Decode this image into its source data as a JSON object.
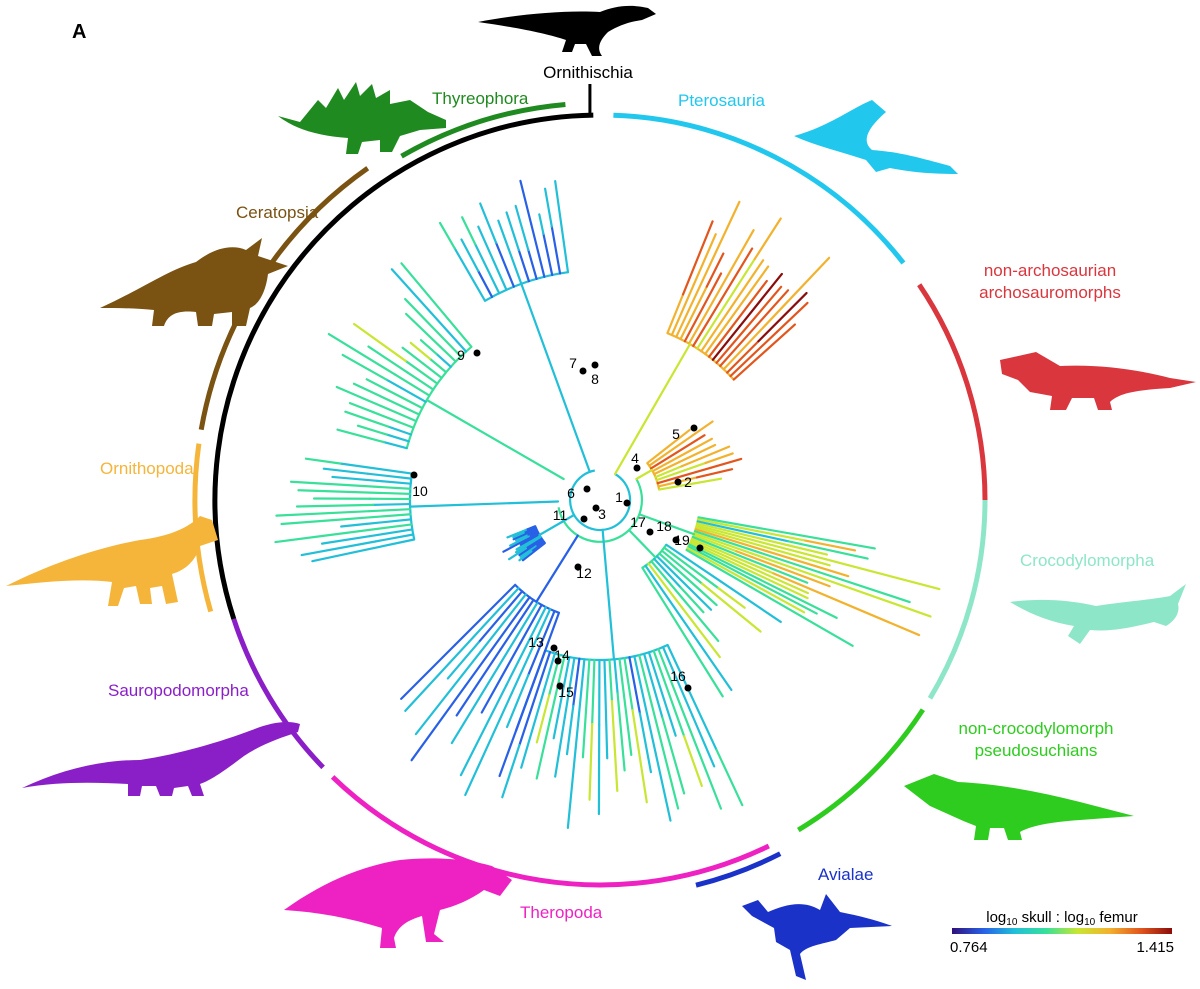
{
  "figure": {
    "panel_label": "A"
  },
  "clades": [
    {
      "key": "ornithischia",
      "name": "Ornithischia",
      "color": "#000000"
    },
    {
      "key": "thyreophora",
      "name": "Thyreophora",
      "color": "#1f8a1f"
    },
    {
      "key": "pterosauria",
      "name": "Pterosauria",
      "color": "#22c7ee"
    },
    {
      "key": "non_archosaurian",
      "name_line1": "non-archosaurian",
      "name_line2": "archosauromorphs",
      "color": "#d9363e"
    },
    {
      "key": "crocodylomorpha",
      "name": "Crocodylomorpha",
      "color": "#8ee6c8"
    },
    {
      "key": "non_croc",
      "name_line1": "non-crocodylomorph",
      "name_line2": "pseudosuchians",
      "color": "#2ecc1f"
    },
    {
      "key": "avialae",
      "name": "Avialae",
      "color": "#1a32c8"
    },
    {
      "key": "theropoda",
      "name": "Theropoda",
      "color": "#ee22c2"
    },
    {
      "key": "sauropodomorpha",
      "name": "Sauropodomorpha",
      "color": "#8a1fc8"
    },
    {
      "key": "ornithopoda",
      "name": "Ornithopoda",
      "color": "#f5b53a"
    },
    {
      "key": "ceratopsia",
      "name": "Ceratopsia",
      "color": "#7a5212"
    }
  ],
  "nodes": [
    "1",
    "2",
    "3",
    "4",
    "5",
    "6",
    "7",
    "8",
    "9",
    "10",
    "11",
    "12",
    "13",
    "14",
    "15",
    "16",
    "17",
    "18",
    "19"
  ],
  "legend": {
    "title_prefix": "log",
    "title_sub1": "10",
    "title_mid": " skull : log",
    "title_sub2": "10",
    "title_suffix": " femur",
    "min_label": "0.764",
    "max_label": "1.415",
    "min_value": 0.764,
    "max_value": 1.415,
    "gradient": [
      "#30107a",
      "#2860e6",
      "#22bfd8",
      "#38e09a",
      "#c8e632",
      "#f2b22e",
      "#e2561e",
      "#8a0c0c"
    ]
  },
  "icons": [
    "heterodontosaurus-silhouette-icon",
    "stegosaurus-silhouette-icon",
    "triceratops-silhouette-icon",
    "iguanodon-silhouette-icon",
    "sauropod-silhouette-icon",
    "tyrannosaurus-silhouette-icon",
    "bird-silhouette-icon",
    "pterosaur-silhouette-icon",
    "proterosuchid-silhouette-icon",
    "ichthyosaur-like-crocodylomorph-silhouette-icon",
    "rauisuchian-silhouette-icon"
  ]
}
